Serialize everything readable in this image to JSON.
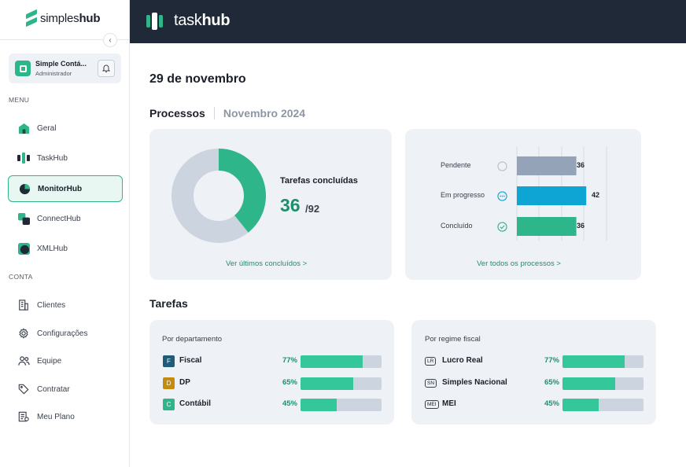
{
  "sidebar": {
    "brand_prefix": "simples",
    "brand_suffix": "hub",
    "collapse_icon": "‹",
    "account": {
      "name": "Simple Contá...",
      "role": "Administrador"
    },
    "menu_label": "MENU",
    "menu": [
      {
        "label": "Geral",
        "icon": "home-icon"
      },
      {
        "label": "TaskHub",
        "icon": "taskhub-icon"
      },
      {
        "label": "MonitorHub",
        "icon": "monitorhub-icon",
        "active": true
      },
      {
        "label": "ConnectHub",
        "icon": "connecthub-icon"
      },
      {
        "label": "XMLHub",
        "icon": "xmlhub-icon"
      }
    ],
    "account_label": "CONTA",
    "account_menu": [
      {
        "label": "Clientes",
        "icon": "building-icon"
      },
      {
        "label": "Configurações",
        "icon": "gear-icon"
      },
      {
        "label": "Equipe",
        "icon": "users-icon"
      },
      {
        "label": "Contratar",
        "icon": "tag-icon"
      },
      {
        "label": "Meu Plano",
        "icon": "plan-icon"
      }
    ]
  },
  "topbar": {
    "title_prefix": "task",
    "title_suffix": "hub"
  },
  "main": {
    "date": "29 de novembro",
    "processes_title": "Processos",
    "processes_month": "Novembro 2024",
    "donut": {
      "label": "Tarefas concluídas",
      "done": 36,
      "total_text": "/92",
      "total": 92,
      "link": "Ver últimos concluídos >"
    },
    "status_chart": {
      "link": "Ver todos os processos >",
      "items": [
        {
          "label": "Pendente",
          "value": 36,
          "color": "#94a3b8",
          "icon": "clock-circle-icon"
        },
        {
          "label": "Em progresso",
          "value": 42,
          "color": "#0ea5d4",
          "icon": "dots-circle-icon"
        },
        {
          "label": "Concluído",
          "value": 36,
          "color": "#2fb58a",
          "icon": "check-circle-icon"
        }
      ]
    },
    "tasks_title": "Tarefas",
    "by_department": {
      "title": "Por departamento",
      "rows": [
        {
          "badge": "F",
          "badge_color": "#1e5c7a",
          "label": "Fiscal",
          "pct_text": "77%",
          "pct": 77
        },
        {
          "badge": "D",
          "badge_color": "#c48b12",
          "label": "DP",
          "pct_text": "65%",
          "pct": 65
        },
        {
          "badge": "C",
          "badge_color": "#2fb58a",
          "label": "Contábil",
          "pct_text": "45%",
          "pct": 45
        }
      ]
    },
    "by_regime": {
      "title": "Por regime fiscal",
      "rows": [
        {
          "tag": "LR",
          "label": "Lucro Real",
          "pct_text": "77%",
          "pct": 77
        },
        {
          "tag": "SN",
          "label": "Simples Nacional",
          "pct_text": "65%",
          "pct": 65
        },
        {
          "tag": "MEI",
          "label": "MEI",
          "pct_text": "45%",
          "pct": 45
        }
      ]
    }
  }
}
